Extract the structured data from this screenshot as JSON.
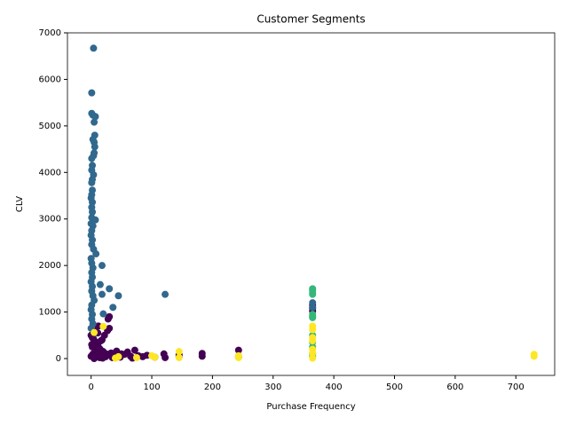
{
  "chart_data": {
    "type": "scatter",
    "title": "Customer Segments",
    "x_label": "Purchase Frequency",
    "y_label": "CLV",
    "xlim": [
      -39,
      764
    ],
    "ylim": [
      -362,
      7000
    ],
    "xticks": [
      0,
      100,
      200,
      300,
      400,
      500,
      600,
      700
    ],
    "yticks": [
      0,
      1000,
      2000,
      3000,
      4000,
      5000,
      6000,
      7000
    ],
    "series": [
      {
        "color": "#440154",
        "x": [
          0,
          2,
          5,
          8,
          10,
          12,
          15,
          18,
          20,
          22,
          25,
          28,
          30,
          30,
          27,
          0,
          3,
          6,
          9,
          14,
          16,
          19,
          24,
          33,
          38,
          42,
          48,
          55,
          60,
          65,
          72,
          78,
          85,
          92,
          105,
          120,
          122,
          145,
          145,
          183,
          183,
          243,
          243,
          365,
          365,
          365,
          5,
          8,
          12,
          4,
          2,
          11,
          16,
          7,
          1,
          13,
          35,
          50,
          68
        ],
        "values": [
          500,
          450,
          600,
          350,
          300,
          250,
          200,
          400,
          150,
          500,
          100,
          850,
          900,
          650,
          600,
          50,
          100,
          30,
          80,
          20,
          60,
          10,
          40,
          120,
          80,
          160,
          30,
          90,
          140,
          50,
          180,
          60,
          40,
          70,
          30,
          100,
          20,
          80,
          40,
          110,
          50,
          180,
          30,
          1150,
          1080,
          1020,
          0,
          200,
          700,
          420,
          250,
          550,
          380,
          150,
          300,
          30,
          20,
          100,
          10
        ]
      },
      {
        "color": "#31688e",
        "x": [
          4,
          1,
          1,
          3,
          7,
          5,
          3,
          6,
          5,
          6,
          5,
          4,
          1,
          2,
          1,
          4,
          2,
          1,
          2,
          1,
          0,
          2,
          1,
          2,
          1,
          7,
          0,
          3,
          1,
          0,
          2,
          1,
          4,
          8,
          0,
          1,
          3,
          18,
          1,
          2,
          0,
          15,
          30,
          2,
          1,
          3,
          18,
          45,
          122,
          5,
          1,
          36,
          0,
          2,
          20,
          1,
          3,
          0,
          365,
          365
        ],
        "values": [
          6670,
          5710,
          5270,
          5230,
          5200,
          5080,
          4710,
          4800,
          4650,
          4550,
          4420,
          4360,
          4300,
          4150,
          4050,
          3950,
          3850,
          3780,
          3620,
          3520,
          3450,
          3360,
          3250,
          3150,
          3030,
          2980,
          2900,
          2850,
          2750,
          2650,
          2550,
          2450,
          2350,
          2250,
          2150,
          2050,
          1950,
          2000,
          1850,
          1750,
          1650,
          1590,
          1500,
          1550,
          1450,
          1350,
          1380,
          1350,
          1380,
          1250,
          1150,
          1100,
          1050,
          950,
          960,
          850,
          750,
          650,
          1200,
          1100
        ]
      },
      {
        "color": "#35b779",
        "x": [
          365,
          365,
          365,
          365,
          365,
          365,
          365,
          365,
          365,
          365,
          365,
          365
        ],
        "values": [
          1500,
          1470,
          1420,
          1380,
          950,
          900,
          880,
          500,
          350,
          250,
          100,
          50
        ]
      },
      {
        "color": "#fde725",
        "x": [
          5,
          20,
          45,
          100,
          105,
          145,
          145,
          243,
          243,
          365,
          365,
          365,
          365,
          365,
          365,
          365,
          730,
          730,
          40,
          75
        ],
        "values": [
          560,
          690,
          40,
          60,
          30,
          150,
          20,
          60,
          20,
          700,
          620,
          450,
          380,
          200,
          120,
          10,
          90,
          50,
          10,
          20
        ]
      }
    ]
  }
}
